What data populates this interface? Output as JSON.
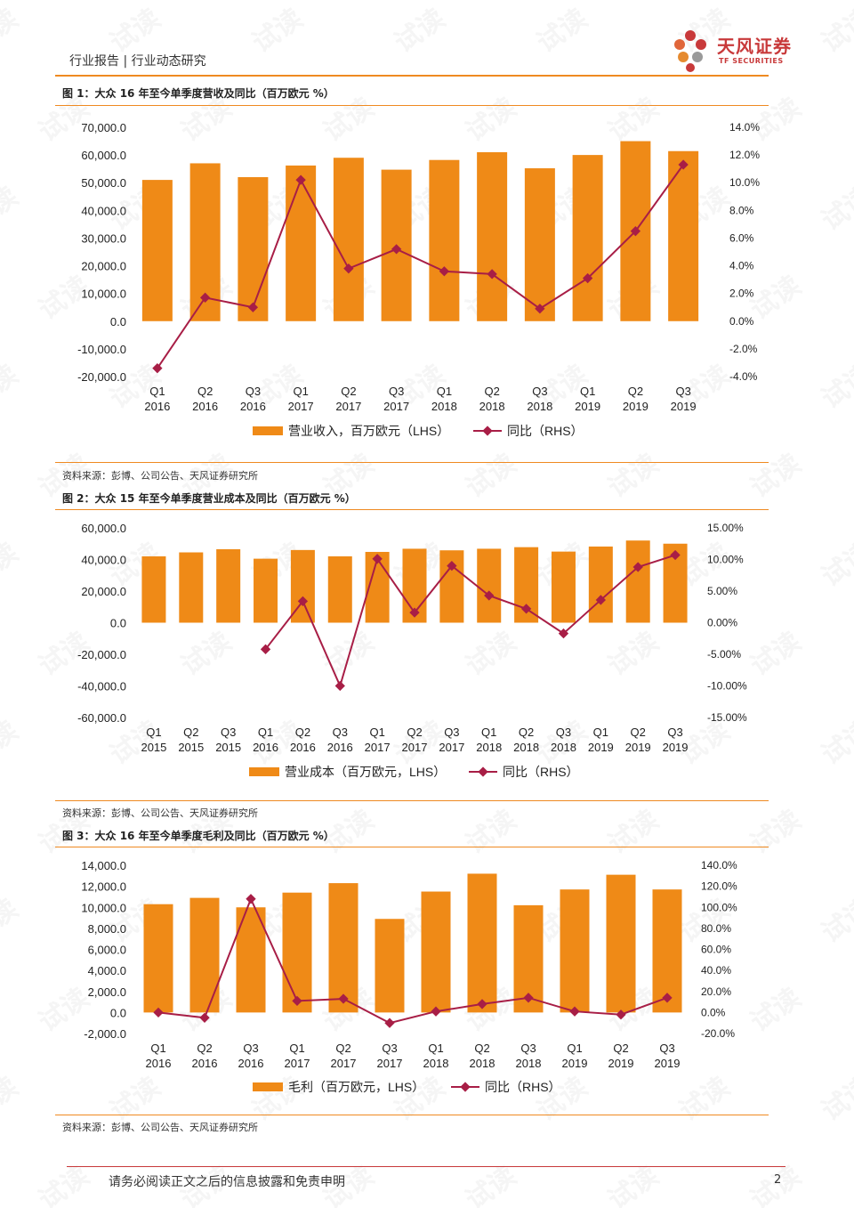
{
  "header": {
    "title": "行业报告 | 行业动态研究",
    "logo_name": "天风证券",
    "logo_sub": "TF SECURITIES"
  },
  "watermark_text": "试读",
  "colors": {
    "bar": "#EF8A17",
    "line": "#A81E46",
    "rule": "#EF8A21",
    "logo": "#C8393A"
  },
  "figures": [
    {
      "title": "图 1：大众 16 年至今单季度营收及同比（百万欧元 %）",
      "source": "资料来源：彭博、公司公告、天风证券研究所"
    },
    {
      "title": "图 2：大众 15 年至今单季度营业成本及同比（百万欧元 %）",
      "source": "资料来源：彭博、公司公告、天风证券研究所"
    },
    {
      "title": "图 3：大众 16 年至今单季度毛利及同比（百万欧元 %）",
      "source": "资料来源：彭博、公司公告、天风证券研究所"
    }
  ],
  "chart_data": [
    {
      "type": "bar",
      "categories": [
        "Q1 2016",
        "Q2 2016",
        "Q3 2016",
        "Q1 2017",
        "Q2 2017",
        "Q3 2017",
        "Q1 2018",
        "Q2 2018",
        "Q3 2018",
        "Q1 2019",
        "Q2 2019",
        "Q3 2019"
      ],
      "series": [
        {
          "name": "营业收入，百万欧元（LHS）",
          "type": "bar",
          "axis": "left",
          "values": [
            51000,
            57000,
            52000,
            56200,
            59000,
            54700,
            58200,
            61000,
            55200,
            60000,
            65000,
            61400
          ]
        },
        {
          "name": "同比（RHS）",
          "type": "line",
          "axis": "right",
          "values": [
            -3.4,
            1.7,
            1.0,
            10.2,
            3.8,
            5.2,
            3.6,
            3.4,
            0.9,
            3.1,
            6.5,
            11.3
          ]
        }
      ],
      "yleft": {
        "min": -20000,
        "max": 70000,
        "step": 10000,
        "ticks": [
          "70,000.0",
          "60,000.0",
          "50,000.0",
          "40,000.0",
          "30,000.0",
          "20,000.0",
          "10,000.0",
          "0.0",
          "-10,000.0",
          "-20,000.0"
        ]
      },
      "yright": {
        "min": -4,
        "max": 14,
        "step": 2,
        "ticks": [
          "14.0%",
          "12.0%",
          "10.0%",
          "8.0%",
          "6.0%",
          "4.0%",
          "2.0%",
          "0.0%",
          "-2.0%",
          "-4.0%"
        ]
      },
      "grid": false,
      "legend": "bottom"
    },
    {
      "type": "bar",
      "categories": [
        "Q1 2015",
        "Q2 2015",
        "Q3 2015",
        "Q1 2016",
        "Q2 2016",
        "Q3 2016",
        "Q1 2017",
        "Q2 2017",
        "Q3 2017",
        "Q1 2018",
        "Q2 2018",
        "Q3 2018",
        "Q1 2019",
        "Q2 2019",
        "Q3 2019"
      ],
      "series": [
        {
          "name": "营业成本（百万欧元，LHS）",
          "type": "bar",
          "axis": "left",
          "values": [
            42000,
            44500,
            46500,
            40500,
            46000,
            42000,
            44800,
            46800,
            45800,
            46800,
            47800,
            45000,
            48200,
            52000,
            50000
          ]
        },
        {
          "name": "同比（RHS）",
          "type": "line",
          "axis": "right",
          "values": [
            null,
            null,
            null,
            -4.2,
            3.4,
            -10.0,
            10.1,
            1.6,
            9.0,
            4.3,
            2.2,
            -1.7,
            3.6,
            8.8,
            10.7
          ]
        }
      ],
      "yleft": {
        "min": -60000,
        "max": 60000,
        "step": 20000,
        "ticks": [
          "60,000.0",
          "40,000.0",
          "20,000.0",
          "0.0",
          "-20,000.0",
          "-40,000.0",
          "-60,000.0"
        ]
      },
      "yright": {
        "min": -15,
        "max": 15,
        "step": 5,
        "ticks": [
          "15.00%",
          "10.00%",
          "5.00%",
          "0.00%",
          "-5.00%",
          "-10.00%",
          "-15.00%"
        ]
      },
      "grid": false,
      "legend": "bottom"
    },
    {
      "type": "bar",
      "categories": [
        "Q1 2016",
        "Q2 2016",
        "Q3 2016",
        "Q1 2017",
        "Q2 2017",
        "Q3 2017",
        "Q1 2018",
        "Q2 2018",
        "Q3 2018",
        "Q1 2019",
        "Q2 2019",
        "Q3 2019"
      ],
      "series": [
        {
          "name": "毛利（百万欧元，LHS）",
          "type": "bar",
          "axis": "left",
          "values": [
            10300,
            10900,
            10000,
            11400,
            12300,
            8900,
            11500,
            13200,
            10200,
            11700,
            13100,
            11700
          ]
        },
        {
          "name": "同比（RHS）",
          "type": "line",
          "axis": "right",
          "values": [
            0,
            -5,
            108,
            11,
            13,
            -10,
            1,
            8,
            14,
            1,
            -2,
            14
          ]
        }
      ],
      "yleft": {
        "min": -2000,
        "max": 14000,
        "step": 2000,
        "ticks": [
          "14,000.0",
          "12,000.0",
          "10,000.0",
          "8,000.0",
          "6,000.0",
          "4,000.0",
          "2,000.0",
          "0.0",
          "-2,000.0"
        ]
      },
      "yright": {
        "min": -20,
        "max": 140,
        "step": 20,
        "ticks": [
          "140.0%",
          "120.0%",
          "100.0%",
          "80.0%",
          "60.0%",
          "40.0%",
          "20.0%",
          "0.0%",
          "-20.0%"
        ]
      },
      "grid": false,
      "legend": "bottom"
    }
  ],
  "footer": {
    "disclaimer": "请务必阅读正文之后的信息披露和免责申明",
    "page_number": "2"
  }
}
